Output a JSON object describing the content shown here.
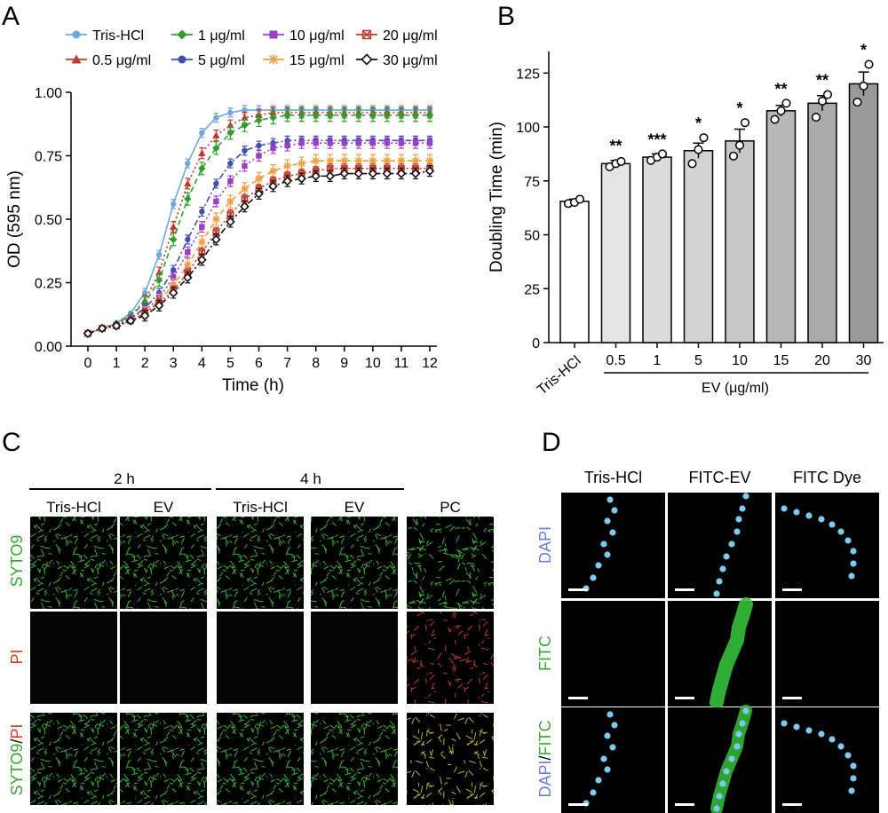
{
  "panel_labels": [
    "A",
    "B",
    "C",
    "D"
  ],
  "chart_data": [
    {
      "type": "line",
      "panel": "A",
      "title": "",
      "xlabel": "Time (h)",
      "ylabel": "OD (595 nm)",
      "xlim": [
        0,
        12
      ],
      "ylim": [
        0,
        1.0
      ],
      "x": [
        0,
        0.5,
        1,
        1.5,
        2,
        2.5,
        3,
        3.5,
        4,
        4.5,
        5,
        5.5,
        6,
        6.5,
        7,
        7.5,
        8,
        8.5,
        9,
        9.5,
        10,
        10.5,
        11,
        11.5,
        12
      ],
      "x_ticks": [
        0,
        1,
        2,
        3,
        4,
        5,
        6,
        7,
        8,
        9,
        10,
        11,
        12
      ],
      "y_ticks": [
        0.0,
        0.25,
        0.5,
        0.75,
        1.0
      ],
      "y_tick_labels": [
        "0.00",
        "0.25",
        "0.50",
        "0.75",
        "1.00"
      ],
      "legend_position": "top",
      "series": [
        {
          "name": "Tris-HCl",
          "color": "#6fa8dc",
          "marker": "circle",
          "line": "solid",
          "values": [
            0.05,
            0.07,
            0.09,
            0.13,
            0.21,
            0.36,
            0.56,
            0.72,
            0.84,
            0.9,
            0.92,
            0.93,
            0.93,
            0.93,
            0.93,
            0.93,
            0.93,
            0.93,
            0.93,
            0.93,
            0.93,
            0.93,
            0.93,
            0.93,
            0.93
          ]
        },
        {
          "name": "0.5 μg/ml",
          "color": "#c0392b",
          "marker": "triangle",
          "line": "dotted",
          "values": [
            0.05,
            0.07,
            0.09,
            0.12,
            0.18,
            0.29,
            0.47,
            0.64,
            0.76,
            0.83,
            0.87,
            0.9,
            0.91,
            0.92,
            0.92,
            0.92,
            0.92,
            0.92,
            0.92,
            0.92,
            0.92,
            0.92,
            0.92,
            0.92,
            0.92
          ]
        },
        {
          "name": "1 μg/ml",
          "color": "#2ca02c",
          "marker": "diamond",
          "line": "dashed",
          "values": [
            0.05,
            0.07,
            0.09,
            0.12,
            0.17,
            0.26,
            0.42,
            0.58,
            0.7,
            0.78,
            0.84,
            0.87,
            0.89,
            0.9,
            0.91,
            0.91,
            0.91,
            0.91,
            0.91,
            0.91,
            0.91,
            0.91,
            0.91,
            0.91,
            0.91
          ]
        },
        {
          "name": "5 μg/ml",
          "color": "#3f4fb0",
          "marker": "circle",
          "line": "dashdot",
          "values": [
            0.05,
            0.07,
            0.09,
            0.11,
            0.15,
            0.21,
            0.3,
            0.42,
            0.53,
            0.64,
            0.72,
            0.77,
            0.79,
            0.8,
            0.81,
            0.81,
            0.81,
            0.81,
            0.81,
            0.81,
            0.81,
            0.81,
            0.81,
            0.81,
            0.81
          ]
        },
        {
          "name": "10 μg/ml",
          "color": "#9b3fc8",
          "marker": "square",
          "line": "dotted",
          "values": [
            0.05,
            0.07,
            0.08,
            0.11,
            0.14,
            0.19,
            0.27,
            0.37,
            0.47,
            0.57,
            0.65,
            0.71,
            0.75,
            0.78,
            0.79,
            0.8,
            0.8,
            0.8,
            0.8,
            0.8,
            0.8,
            0.8,
            0.8,
            0.8,
            0.8
          ]
        },
        {
          "name": "15 μg/ml",
          "color": "#f0a040",
          "marker": "asterisk",
          "line": "dashed",
          "values": [
            0.05,
            0.07,
            0.08,
            0.1,
            0.13,
            0.18,
            0.24,
            0.32,
            0.41,
            0.5,
            0.57,
            0.62,
            0.66,
            0.69,
            0.71,
            0.72,
            0.73,
            0.73,
            0.73,
            0.73,
            0.73,
            0.73,
            0.73,
            0.73,
            0.73
          ]
        },
        {
          "name": "20 μg/ml",
          "color": "#c0392b",
          "marker": "square-x",
          "line": "dotted",
          "values": [
            0.05,
            0.07,
            0.08,
            0.1,
            0.13,
            0.17,
            0.22,
            0.29,
            0.37,
            0.45,
            0.52,
            0.58,
            0.62,
            0.65,
            0.67,
            0.68,
            0.69,
            0.7,
            0.7,
            0.7,
            0.7,
            0.7,
            0.7,
            0.7,
            0.7
          ]
        },
        {
          "name": "30 μg/ml",
          "color": "#111111",
          "marker": "open-diamond",
          "line": "dashdot",
          "values": [
            0.05,
            0.07,
            0.08,
            0.1,
            0.12,
            0.16,
            0.21,
            0.27,
            0.34,
            0.42,
            0.49,
            0.55,
            0.6,
            0.63,
            0.65,
            0.66,
            0.67,
            0.67,
            0.68,
            0.68,
            0.68,
            0.68,
            0.68,
            0.68,
            0.69
          ]
        }
      ]
    },
    {
      "type": "bar",
      "panel": "B",
      "title": "",
      "xlabel": "EV (μg/ml)",
      "ylabel": "Doubling Time (min)",
      "ylim": [
        0,
        135
      ],
      "y_ticks": [
        0,
        25,
        50,
        75,
        100,
        125
      ],
      "categories": [
        "Tris-HCl",
        "0.5",
        "1",
        "5",
        "10",
        "15",
        "20",
        "30"
      ],
      "values": [
        65.5,
        83,
        86,
        89,
        93.5,
        107.5,
        111,
        120
      ],
      "errors": [
        1,
        1.5,
        1.5,
        3.5,
        5.5,
        2.5,
        3.5,
        5.5
      ],
      "points": [
        [
          64.5,
          65,
          66.5
        ],
        [
          81.5,
          83,
          84
        ],
        [
          84.5,
          86,
          87.5
        ],
        [
          83,
          89.5,
          95
        ],
        [
          86.5,
          91.5,
          102
        ],
        [
          103.5,
          107.5,
          111
        ],
        [
          104.5,
          112,
          115
        ],
        [
          111.5,
          119,
          129
        ]
      ],
      "significance": [
        "",
        "**",
        "***",
        "*",
        "*",
        "**",
        "**",
        "*"
      ],
      "bar_colors": [
        "#ffffff",
        "#e4e4e4",
        "#dcdcdc",
        "#d2d2d2",
        "#c8c8c8",
        "#b8b8b8",
        "#aaaaaa",
        "#9a9a9a"
      ]
    }
  ],
  "panel_c": {
    "time_groups": [
      "2 h",
      "4 h"
    ],
    "columns": [
      "Tris-HCl",
      "EV",
      "Tris-HCl",
      "EV",
      "PC"
    ],
    "rows": [
      {
        "label": "SYTO9",
        "label_color": "#3aa832"
      },
      {
        "label": "PI",
        "label_color": "#d83a2a"
      },
      {
        "label_parts": [
          "SYTO9",
          "/",
          "PI"
        ]
      }
    ]
  },
  "panel_d": {
    "columns": [
      "Tris-HCl",
      "FITC-EV",
      "FITC Dye"
    ],
    "rows": [
      {
        "label": "DAPI",
        "label_color": "#6b7fd8"
      },
      {
        "label": "FITC",
        "label_color": "#3aa832"
      },
      {
        "label_parts": [
          "DAPI",
          "/",
          "FITC"
        ]
      }
    ]
  },
  "colors": {
    "green": "#3aa832",
    "red": "#d83a2a",
    "blue": "#6b7fd8"
  }
}
